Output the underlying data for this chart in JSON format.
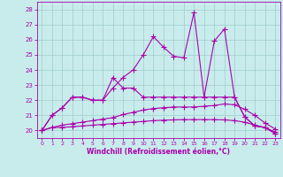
{
  "x": [
    0,
    1,
    2,
    3,
    4,
    5,
    6,
    7,
    8,
    9,
    10,
    11,
    12,
    13,
    14,
    15,
    16,
    17,
    18,
    19,
    20,
    21,
    22,
    23
  ],
  "line1": [
    20.0,
    21.0,
    21.5,
    22.2,
    22.2,
    22.0,
    22.0,
    22.8,
    23.5,
    24.0,
    25.0,
    26.2,
    25.5,
    24.9,
    24.8,
    27.8,
    22.2,
    25.9,
    26.7,
    22.2,
    20.9,
    20.3,
    20.2,
    19.8
  ],
  "line2": [
    20.0,
    21.0,
    21.5,
    22.2,
    22.2,
    22.0,
    22.0,
    23.5,
    22.8,
    22.8,
    22.2,
    22.2,
    22.2,
    22.2,
    22.2,
    22.2,
    22.2,
    22.2,
    22.2,
    22.2,
    20.9,
    20.3,
    20.2,
    19.8
  ],
  "line3": [
    20.0,
    20.2,
    20.35,
    20.45,
    20.55,
    20.65,
    20.75,
    20.85,
    21.05,
    21.2,
    21.35,
    21.45,
    21.5,
    21.55,
    21.55,
    21.55,
    21.6,
    21.65,
    21.75,
    21.7,
    21.4,
    21.0,
    20.5,
    20.1
  ],
  "line4": [
    20.0,
    20.2,
    20.2,
    20.25,
    20.3,
    20.35,
    20.4,
    20.45,
    20.5,
    20.55,
    20.6,
    20.65,
    20.68,
    20.7,
    20.72,
    20.72,
    20.72,
    20.72,
    20.7,
    20.65,
    20.55,
    20.35,
    20.2,
    19.9
  ],
  "ylim": [
    19.5,
    28.5
  ],
  "yticks": [
    20,
    21,
    22,
    23,
    24,
    25,
    26,
    27,
    28
  ],
  "xlim": [
    -0.5,
    23.5
  ],
  "xticks": [
    0,
    1,
    2,
    3,
    4,
    5,
    6,
    7,
    8,
    9,
    10,
    11,
    12,
    13,
    14,
    15,
    16,
    17,
    18,
    19,
    20,
    21,
    22,
    23
  ],
  "color": "#aa00aa",
  "bg_color": "#c8ecec",
  "grid_color": "#a0cccc",
  "xlabel": "Windchill (Refroidissement éolien,°C)",
  "marker": "+",
  "linewidth": 0.8,
  "markersize": 4,
  "markeredgewidth": 0.8
}
